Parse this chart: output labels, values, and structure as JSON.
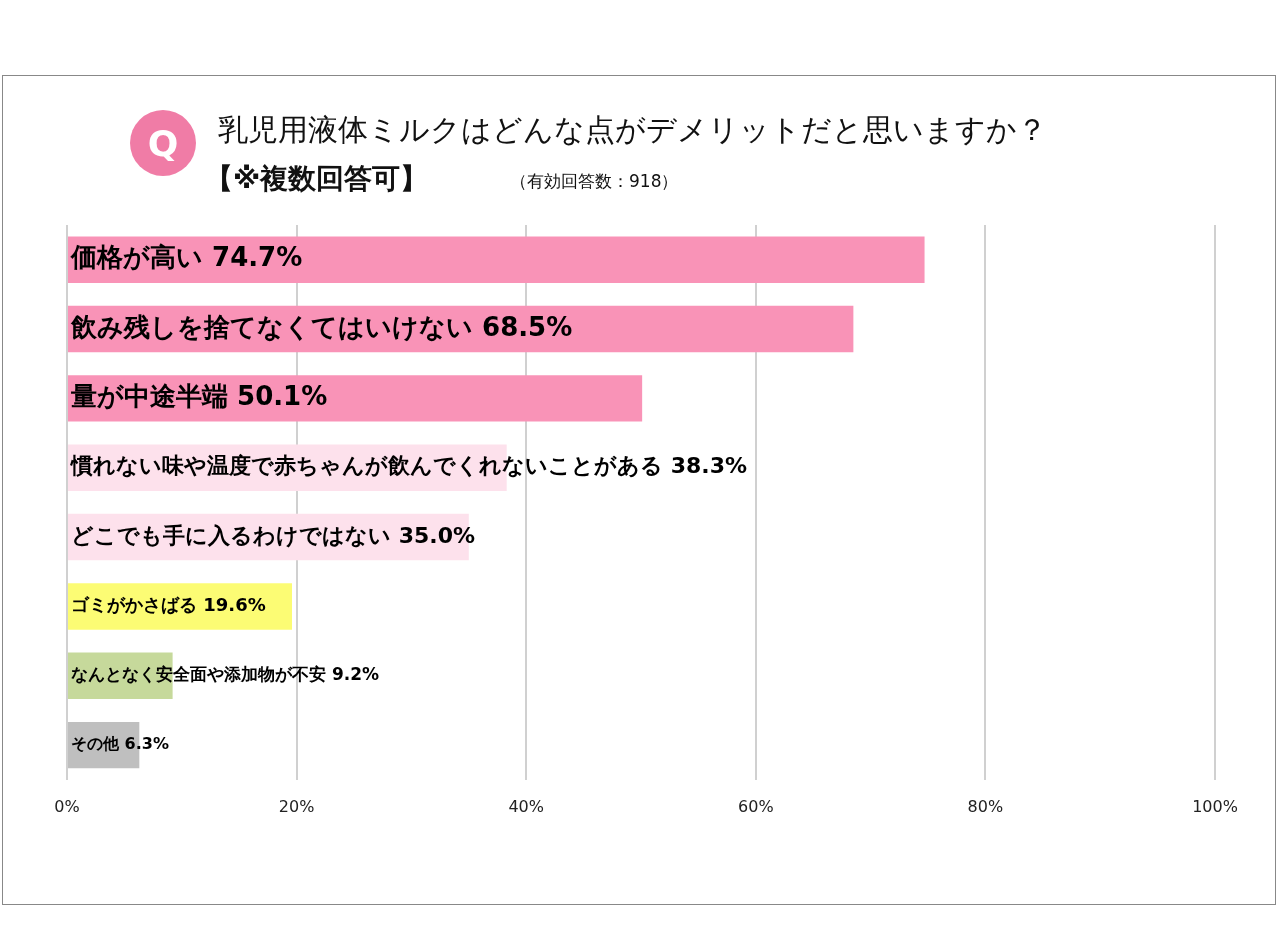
{
  "chart_data": {
    "type": "bar",
    "orientation": "horizontal",
    "title": "乳児用液体ミルクはどんな点がデメリットだと思いますか？",
    "subtitle": "【※複数回答可】",
    "annotations": [
      "Q",
      "（有効回答数：918）"
    ],
    "categories": [
      "価格が高い",
      "飲み残しを捨てなくてはいけない",
      "量が中途半端",
      "慣れない味や温度で赤ちゃんが飲んでくれないことがある",
      "どこでも手に入るわけではない",
      "ゴミがかさばる",
      "なんとなく安全面や添加物が不安",
      "その他"
    ],
    "values": [
      74.7,
      68.5,
      50.1,
      38.3,
      35.0,
      19.6,
      9.2,
      6.3
    ],
    "value_labels": [
      "74.7%",
      "68.5%",
      "50.1%",
      "38.3%",
      "35.0%",
      "19.6%",
      "9.2%",
      "6.3%"
    ],
    "colors": [
      "#f993b7",
      "#f993b7",
      "#f993b7",
      "#fde1ec",
      "#fde1ec",
      "#fcfc74",
      "#c6d99b",
      "#bfbfbf"
    ],
    "xlim": [
      0,
      100
    ],
    "xticks": [
      {
        "value": 0,
        "label": "0%"
      },
      {
        "value": 20,
        "label": "20%"
      },
      {
        "value": 40,
        "label": "40%"
      },
      {
        "value": 60,
        "label": "60%"
      },
      {
        "value": 80,
        "label": "80%"
      },
      {
        "value": 100,
        "label": "100%"
      }
    ],
    "grid": "x",
    "legend": false
  }
}
